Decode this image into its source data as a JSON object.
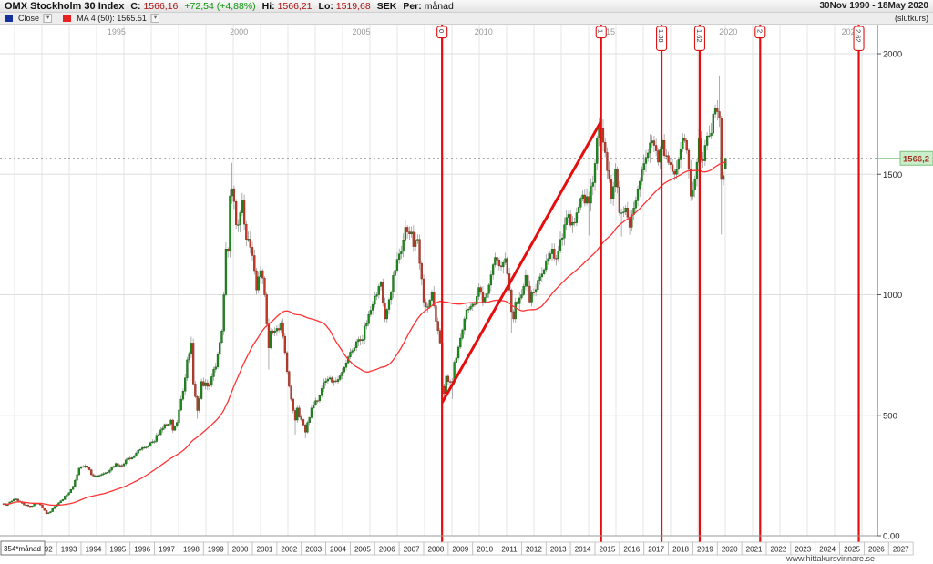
{
  "header": {
    "title": "OMX Stockholm 30 Index",
    "c_label": "C:",
    "c_value": "1566,16",
    "change": "+72,54 (+4,88%)",
    "hi_label": "Hi:",
    "hi_value": "1566,21",
    "lo_label": "Lo:",
    "lo_value": "1519,68",
    "currency": "SEK",
    "per_label": "Per:",
    "per_value": "månad",
    "date_range": "30Nov 1990 - 18May 2020",
    "close_type": "(slutkurs)"
  },
  "legend": {
    "close_label": "Close",
    "ma_label": "MA 4 (50): 1565.51",
    "dropdown_glyph": "▾",
    "close_swatch_color": "#16309c",
    "ma_swatch_color": "#e82222"
  },
  "footer": {
    "bar_count_label": "354*månad",
    "website": "www.hittakursvinnare.se"
  },
  "axes": {
    "y_ticks": [
      "2000",
      "1500",
      "1000",
      "500",
      "0.00"
    ],
    "y_tick_values": [
      2000,
      1500,
      1000,
      500,
      0
    ],
    "y_gridline_values": [
      2000,
      1500,
      1000,
      500
    ],
    "top_years": [
      "1995",
      "2000",
      "2005",
      "2010",
      "2015",
      "2020",
      "2025"
    ],
    "bottom_years": [
      "1992",
      "1993",
      "1994",
      "1995",
      "1996",
      "1997",
      "1998",
      "1999",
      "2000",
      "2001",
      "2002",
      "2003",
      "2004",
      "2005",
      "2006",
      "2007",
      "2008",
      "2009",
      "2010",
      "2011",
      "2012",
      "2013",
      "2014",
      "2015",
      "2016",
      "2017",
      "2018",
      "2019",
      "2020",
      "2021",
      "2022",
      "2023",
      "2024",
      "2025",
      "2026",
      "2027"
    ],
    "price_tag": "1566,2"
  },
  "chart_data": {
    "type": "candlestick",
    "instrument": "OMX Stockholm 30 Index",
    "period": "monthly",
    "x_start_month": "1990-11",
    "x_end_month": "2020-05",
    "bar_count": 355,
    "y_range": [
      0,
      2120
    ],
    "last_close": 1566.16,
    "first_open": 130,
    "last_open": 1521,
    "ma": {
      "label": "MA 4 (50)",
      "window": 50,
      "last_value": 1565.51
    },
    "close_anchors": [
      [
        0,
        133
      ],
      [
        1,
        126
      ],
      [
        3,
        140
      ],
      [
        6,
        152
      ],
      [
        10,
        128
      ],
      [
        13,
        122
      ],
      [
        16,
        135
      ],
      [
        18,
        128
      ],
      [
        21,
        92
      ],
      [
        23,
        100
      ],
      [
        25,
        122
      ],
      [
        28,
        145
      ],
      [
        31,
        170
      ],
      [
        34,
        205
      ],
      [
        37,
        280
      ],
      [
        40,
        290
      ],
      [
        44,
        248
      ],
      [
        49,
        258
      ],
      [
        52,
        272
      ],
      [
        55,
        300
      ],
      [
        58,
        290
      ],
      [
        61,
        322
      ],
      [
        64,
        330
      ],
      [
        67,
        358
      ],
      [
        70,
        368
      ],
      [
        73,
        390
      ],
      [
        76,
        420
      ],
      [
        79,
        462
      ],
      [
        82,
        480
      ],
      [
        83,
        438
      ],
      [
        85,
        470
      ],
      [
        88,
        600
      ],
      [
        90,
        730
      ],
      [
        92,
        800
      ],
      [
        93,
        630
      ],
      [
        95,
        520
      ],
      [
        97,
        640
      ],
      [
        100,
        620
      ],
      [
        102,
        660
      ],
      [
        104,
        700
      ],
      [
        107,
        850
      ],
      [
        108,
        1000
      ],
      [
        109,
        1190
      ],
      [
        110,
        1180
      ],
      [
        111,
        1410
      ],
      [
        112,
        1440
      ],
      [
        114,
        1290
      ],
      [
        116,
        1340
      ],
      [
        117,
        1390
      ],
      [
        119,
        1230
      ],
      [
        121,
        1197
      ],
      [
        123,
        1100
      ],
      [
        124,
        1020
      ],
      [
        126,
        1100
      ],
      [
        128,
        1000
      ],
      [
        130,
        780
      ],
      [
        131,
        850
      ],
      [
        133,
        850
      ],
      [
        136,
        880
      ],
      [
        138,
        760
      ],
      [
        140,
        620
      ],
      [
        142,
        520
      ],
      [
        143,
        480
      ],
      [
        144,
        530
      ],
      [
        145,
        493
      ],
      [
        147,
        460
      ],
      [
        148,
        430
      ],
      [
        150,
        490
      ],
      [
        151,
        530
      ],
      [
        154,
        560
      ],
      [
        157,
        636
      ],
      [
        160,
        655
      ],
      [
        163,
        640
      ],
      [
        166,
        680
      ],
      [
        169,
        742
      ],
      [
        172,
        780
      ],
      [
        175,
        810
      ],
      [
        178,
        880
      ],
      [
        181,
        960
      ],
      [
        183,
        1000
      ],
      [
        185,
        1050
      ],
      [
        187,
        900
      ],
      [
        189,
        980
      ],
      [
        191,
        1080
      ],
      [
        193,
        1147
      ],
      [
        195,
        1180
      ],
      [
        197,
        1280
      ],
      [
        200,
        1260
      ],
      [
        201,
        1200
      ],
      [
        203,
        1230
      ],
      [
        204,
        1130
      ],
      [
        205,
        1066
      ],
      [
        206,
        970
      ],
      [
        208,
        950
      ],
      [
        210,
        1010
      ],
      [
        212,
        890
      ],
      [
        214,
        800
      ],
      [
        215,
        620
      ],
      [
        216,
        590
      ],
      [
        217,
        662
      ],
      [
        218,
        640
      ],
      [
        220,
        640
      ],
      [
        221,
        720
      ],
      [
        224,
        820
      ],
      [
        226,
        900
      ],
      [
        229,
        951
      ],
      [
        231,
        960
      ],
      [
        233,
        1030
      ],
      [
        235,
        970
      ],
      [
        238,
        1040
      ],
      [
        241,
        1155
      ],
      [
        243,
        1120
      ],
      [
        246,
        1150
      ],
      [
        248,
        1020
      ],
      [
        249,
        930
      ],
      [
        250,
        900
      ],
      [
        251,
        970
      ],
      [
        253,
        987
      ],
      [
        256,
        1080
      ],
      [
        258,
        970
      ],
      [
        260,
        1010
      ],
      [
        262,
        1060
      ],
      [
        265,
        1104
      ],
      [
        267,
        1150
      ],
      [
        269,
        1190
      ],
      [
        271,
        1150
      ],
      [
        273,
        1230
      ],
      [
        275,
        1290
      ],
      [
        277,
        1333
      ],
      [
        279,
        1300
      ],
      [
        281,
        1340
      ],
      [
        283,
        1400
      ],
      [
        285,
        1380
      ],
      [
        287,
        1380
      ],
      [
        289,
        1465
      ],
      [
        291,
        1650
      ],
      [
        293,
        1690
      ],
      [
        295,
        1590
      ],
      [
        297,
        1480
      ],
      [
        298,
        1400
      ],
      [
        300,
        1520
      ],
      [
        301,
        1447
      ],
      [
        302,
        1340
      ],
      [
        303,
        1340
      ],
      [
        305,
        1360
      ],
      [
        307,
        1280
      ],
      [
        309,
        1360
      ],
      [
        311,
        1440
      ],
      [
        313,
        1517
      ],
      [
        315,
        1570
      ],
      [
        317,
        1630
      ],
      [
        319,
        1620
      ],
      [
        321,
        1550
      ],
      [
        323,
        1640
      ],
      [
        325,
        1577
      ],
      [
        327,
        1540
      ],
      [
        329,
        1500
      ],
      [
        331,
        1560
      ],
      [
        333,
        1650
      ],
      [
        334,
        1640
      ],
      [
        336,
        1520
      ],
      [
        337,
        1409
      ],
      [
        339,
        1480
      ],
      [
        341,
        1650
      ],
      [
        342,
        1560
      ],
      [
        344,
        1620
      ],
      [
        346,
        1660
      ],
      [
        348,
        1750
      ],
      [
        349,
        1772
      ],
      [
        350,
        1760
      ],
      [
        351,
        1732
      ],
      [
        352,
        1478
      ],
      [
        353,
        1494
      ],
      [
        354,
        1566.16
      ]
    ],
    "wick_overrides": {
      "92": [
        826,
        null
      ],
      "95": [
        null,
        486
      ],
      "112": [
        1547,
        null
      ],
      "130": [
        null,
        690
      ],
      "143": [
        null,
        420
      ],
      "148": [
        null,
        405
      ],
      "215": [
        null,
        560
      ],
      "220": [
        null,
        568
      ],
      "249": [
        null,
        840
      ],
      "287": [
        null,
        1246
      ],
      "293": [
        1720,
        null
      ],
      "303": [
        null,
        1241
      ],
      "351": [
        1910,
        null
      ],
      "352": [
        null,
        1250
      ],
      "354": [
        1566.21,
        1519.68
      ]
    },
    "fibonacci_time_lines": {
      "anchor0_month": 215,
      "anchor1_month": 293,
      "ratios": [
        0,
        1,
        1.38,
        1.62,
        2,
        2.62
      ],
      "labels": [
        "0",
        "1",
        "1.38",
        "1.62",
        "2",
        "2.62"
      ]
    },
    "trend_line": {
      "from_month": 215,
      "from_value": 552,
      "to_month": 293,
      "to_value": 1720
    },
    "colors": {
      "up_body": "#1e8a1e",
      "up_edge": "#0d5c0d",
      "down_body": "#c23b2a",
      "down_edge": "#7e2318",
      "wick": "#8c8c8c",
      "ma_line": "#ff3333",
      "fib_line": "#e60d0d",
      "trend_line": "#e60d0d",
      "grid": "#e6e6e6",
      "grid_h": "#dedede",
      "last_price_line": "#909090",
      "tag_bg": "#c9eec9",
      "tag_border": "#7fbf7f",
      "tag_text": "#a03020"
    }
  }
}
